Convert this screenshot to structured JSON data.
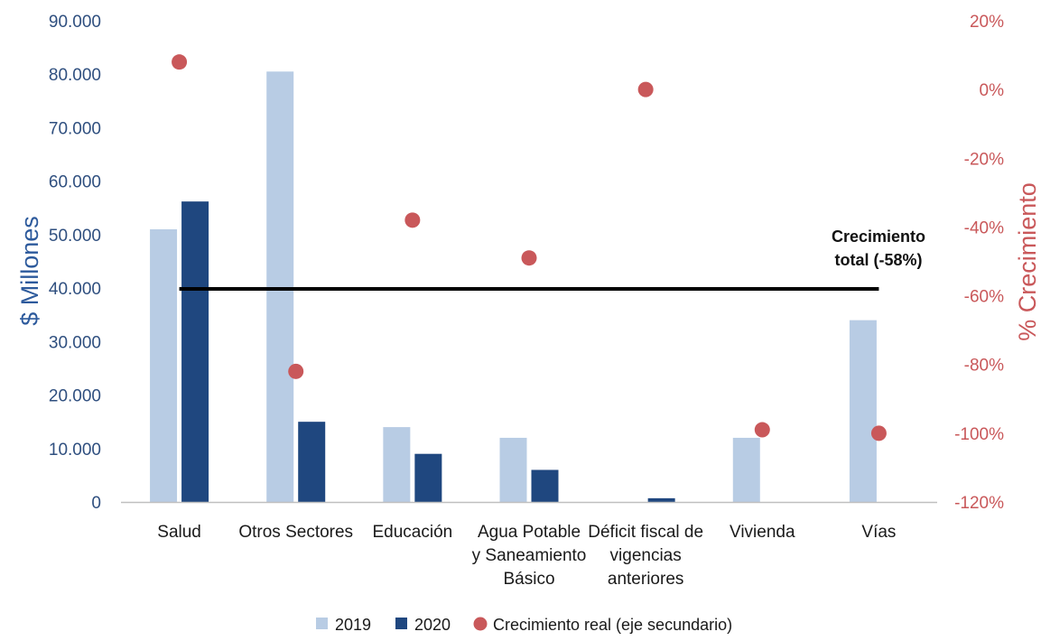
{
  "chart_data": {
    "type": "bar",
    "categories": [
      [
        "Salud"
      ],
      [
        "Otros Sectores"
      ],
      [
        "Educación"
      ],
      [
        "Agua Potable",
        "y Saneamiento",
        "Básico"
      ],
      [
        "Déficit fiscal de",
        "vigencias",
        "anteriores"
      ],
      [
        "Vivienda"
      ],
      [
        "Vías"
      ]
    ],
    "series": [
      {
        "name": "2019",
        "type": "bar",
        "axis": "left",
        "color": "#b8cce4",
        "values": [
          51000,
          80500,
          14000,
          12000,
          0,
          12000,
          34000
        ]
      },
      {
        "name": "2020",
        "type": "bar",
        "axis": "left",
        "color": "#1f477f",
        "values": [
          56200,
          15000,
          9000,
          6000,
          700,
          0,
          0
        ]
      },
      {
        "name": "Crecimiento real (eje secundario)",
        "type": "scatter",
        "axis": "right",
        "color": "#c9585a",
        "values": [
          8,
          -82,
          -38,
          -49,
          0,
          -99,
          -100
        ]
      }
    ],
    "ylabel": "$ Millones",
    "y2label": "% Crecimiento",
    "ylim": [
      0,
      90000
    ],
    "y2lim": [
      -120,
      20
    ],
    "yticks": [
      "0",
      "10.000",
      "20.000",
      "30.000",
      "40.000",
      "50.000",
      "60.000",
      "70.000",
      "80.000",
      "90.000"
    ],
    "y2ticks": [
      "-120%",
      "-100%",
      "-80%",
      "-60%",
      "-40%",
      "-20%",
      "0%",
      "20%"
    ],
    "reference_line": {
      "axis": "right",
      "value": -58,
      "color": "#000000"
    },
    "annotation": [
      "Crecimiento",
      "total (-58%)"
    ],
    "grid": false,
    "legend_position": "bottom"
  }
}
